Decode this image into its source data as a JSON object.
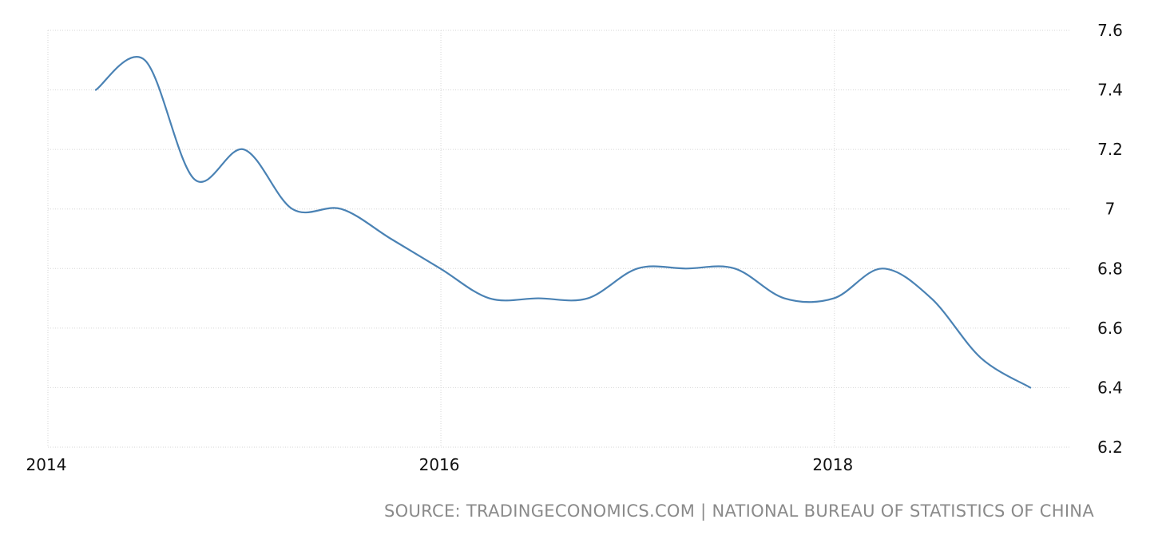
{
  "source_text": "SOURCE: TRADINGECONOMICS.COM | NATIONAL BUREAU OF STATISTICS OF CHINA",
  "chart_data": {
    "type": "line",
    "title": "",
    "xlabel": "",
    "ylabel": "",
    "xlim": [
      "2014-01-01",
      "2019-03-15"
    ],
    "ylim": [
      6.2,
      7.6
    ],
    "x_ticks": [
      "2014",
      "2016",
      "2018"
    ],
    "y_ticks": [
      "6.2",
      "6.4",
      "6.6",
      "6.8",
      "7",
      "7.2",
      "7.4",
      "7.6"
    ],
    "grid": true,
    "y_axis_position": "right",
    "legend": "none",
    "series": [
      {
        "color": "#4a82b4",
        "x": [
          "2014-03-31",
          "2014-06-30",
          "2014-09-30",
          "2014-12-31",
          "2015-03-31",
          "2015-06-30",
          "2015-09-30",
          "2015-12-31",
          "2016-03-31",
          "2016-06-30",
          "2016-09-30",
          "2016-12-31",
          "2017-03-31",
          "2017-06-30",
          "2017-09-30",
          "2017-12-31",
          "2018-03-31",
          "2018-06-30",
          "2018-09-30",
          "2018-12-31"
        ],
        "y": [
          7.4,
          7.5,
          7.1,
          7.2,
          7.0,
          7.0,
          6.9,
          6.8,
          6.7,
          6.7,
          6.7,
          6.8,
          6.8,
          6.8,
          6.7,
          6.7,
          6.8,
          6.7,
          6.5,
          6.4
        ]
      }
    ]
  }
}
